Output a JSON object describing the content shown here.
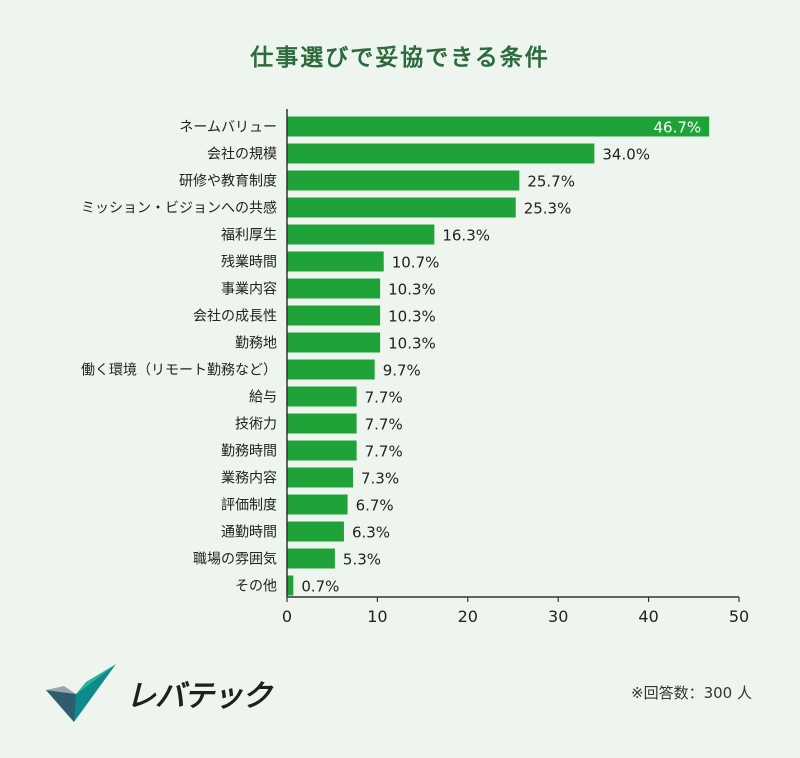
{
  "chart_data": {
    "type": "bar",
    "orientation": "horizontal",
    "title": "仕事選びで妥協できる条件",
    "categories": [
      "ネームバリュー",
      "会社の規模",
      "研修や教育制度",
      "ミッション・ビジョンへの共感",
      "福利厚生",
      "残業時間",
      "事業内容",
      "会社の成長性",
      "勤務地",
      "働く環境（リモート勤務など）",
      "給与",
      "技術力",
      "勤務時間",
      "業務内容",
      "評価制度",
      "通勤時間",
      "職場の雰囲気",
      "その他"
    ],
    "values": [
      46.7,
      34.0,
      25.7,
      25.3,
      16.3,
      10.7,
      10.3,
      10.3,
      10.3,
      9.7,
      7.7,
      7.7,
      7.7,
      7.3,
      6.7,
      6.3,
      5.3,
      0.7
    ],
    "value_labels": [
      "46.7%",
      "34.0%",
      "25.7%",
      "25.3%",
      "16.3%",
      "10.7%",
      "10.3%",
      "10.3%",
      "10.3%",
      "9.7%",
      "7.7%",
      "7.7%",
      "7.7%",
      "7.3%",
      "6.7%",
      "6.3%",
      "5.3%",
      "0.7%"
    ],
    "xlim": [
      0,
      50
    ],
    "xticks": [
      "0",
      "10",
      "20",
      "30",
      "40",
      "50"
    ],
    "grid": false,
    "bar_color": "#1fa338"
  },
  "logo": {
    "name": "レバテック"
  },
  "note": "※回答数：300 人"
}
